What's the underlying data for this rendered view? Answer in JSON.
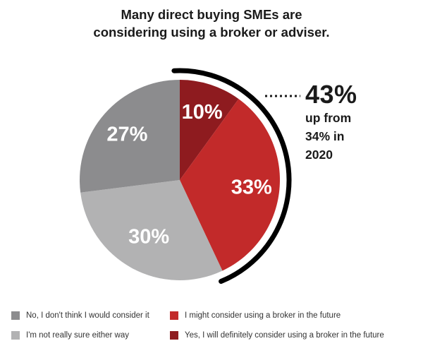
{
  "title_lines": [
    "Many direct buying SMEs are",
    "considering using a broker or adviser."
  ],
  "callout": {
    "value": "43%",
    "lines": [
      "up from",
      "34% in",
      "2020"
    ]
  },
  "chart_data": {
    "type": "pie",
    "start_angle_deg": 0,
    "direction": "clockwise",
    "slices": [
      {
        "label": "Yes, I will definitely consider using a broker in the future",
        "value": 10,
        "display": "10%",
        "color": "#8e1b1f"
      },
      {
        "label": "I might consider using a broker in the future",
        "value": 33,
        "display": "33%",
        "color": "#c22a2a"
      },
      {
        "label": "I'm not really sure either way",
        "value": 30,
        "display": "30%",
        "color": "#b2b2b3"
      },
      {
        "label": "No, I don't think I would consider it",
        "value": 27,
        "display": "27%",
        "color": "#8c8c8e"
      }
    ],
    "highlight_arc": {
      "covers": [
        "Yes, I will definitely consider using a broker in the future",
        "I might consider using a broker in the future"
      ],
      "color": "#000000"
    }
  },
  "legend": [
    {
      "label": "No, I don't think I would consider it",
      "color": "#8c8c8e"
    },
    {
      "label": "I might consider using a broker in the future",
      "color": "#c22a2a"
    },
    {
      "label": "I'm not really sure either way",
      "color": "#b2b2b3"
    },
    {
      "label": "Yes, I will definitely consider using a broker in the future",
      "color": "#8e1b1f"
    }
  ]
}
